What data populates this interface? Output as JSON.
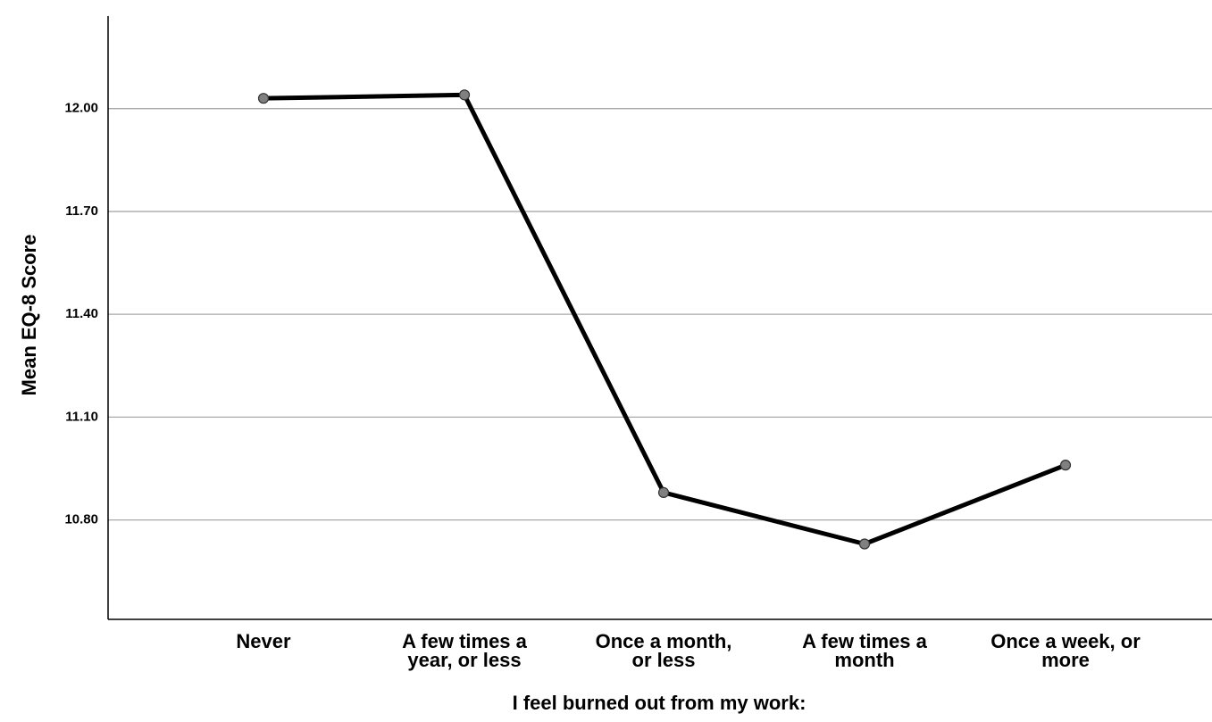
{
  "chart_data": {
    "type": "line",
    "categories": [
      [
        "Never"
      ],
      [
        "A few times a",
        "year, or less"
      ],
      [
        "Once a month,",
        "or less"
      ],
      [
        "A few times a",
        "month"
      ],
      [
        "Once a week, or",
        "more"
      ]
    ],
    "values": [
      12.03,
      12.04,
      10.88,
      10.73,
      10.96
    ],
    "xlabel": "I feel burned out from my work:",
    "ylabel": "Mean EQ-8 Score",
    "yticks": [
      "10.80",
      "11.10",
      "11.40",
      "11.70",
      "12.00"
    ],
    "ylim": [
      10.51,
      12.27
    ],
    "grid": "horizontal",
    "colors": {
      "line": "#000000",
      "marker_fill": "#808080",
      "grid": "#a9a9a9",
      "axis": "#000000"
    }
  }
}
